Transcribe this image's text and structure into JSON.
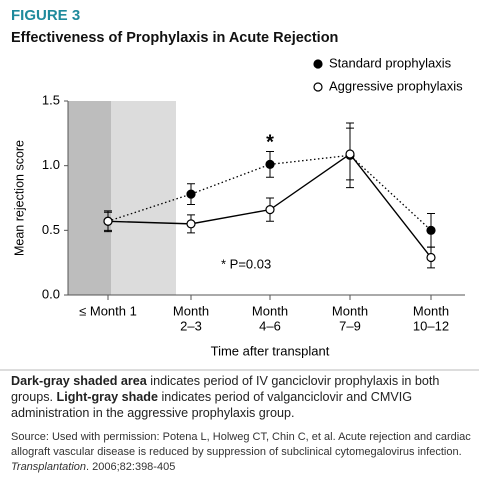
{
  "figure_label": "FIGURE 3",
  "caption": [
    "Dark-gray shaded area",
    " indicates period of IV ganciclovir prophylaxis in both groups. ",
    "Light-gray shade",
    " indicates period of valganciclovir and CMVIG administration in the aggressive prophylaxis group."
  ],
  "source": [
    "Source: Used with permission: Potena L, Holweg CT, Chin C, et al. Acute rejection and cardiac allograft vascular disease is reduced by suppression of subclinical cytomegalovirus infection. ",
    "Transplantation",
    ". 2006;82:398-405"
  ],
  "chart_data": {
    "type": "line",
    "title": "Effectiveness of Prophylaxis in Acute Rejection",
    "x_label": "Time after transplant",
    "y_label": "Mean rejection score",
    "annotation": "*",
    "note": "* P=0.03",
    "categories": [
      [
        "≤ Month 1"
      ],
      [
        "Month",
        "2–3"
      ],
      [
        "Month",
        "4–6"
      ],
      [
        "Month",
        "7–9"
      ],
      [
        "Month",
        "10–12"
      ]
    ],
    "ylim": [
      0,
      1.5
    ],
    "yticks": [
      {
        "value": 0,
        "label": "0.0"
      },
      0.5,
      {
        "value": 1,
        "label": "1.0"
      },
      1.5
    ],
    "series": [
      {
        "name": "Standard prophylaxis",
        "color": "#000000",
        "marker": "filled",
        "line": "dotted",
        "values": [
          0.57,
          0.78,
          1.01,
          1.08,
          0.5
        ],
        "errors": [
          0.08,
          0.08,
          0.1,
          0.25,
          0.13
        ]
      },
      {
        "name": "Aggressive prophylaxis",
        "color": "#000000",
        "marker": "open",
        "line": "solid",
        "values": [
          0.57,
          0.55,
          0.66,
          1.09,
          0.29
        ],
        "errors": [
          0.07,
          0.07,
          0.09,
          0.2,
          0.08
        ]
      }
    ]
  }
}
